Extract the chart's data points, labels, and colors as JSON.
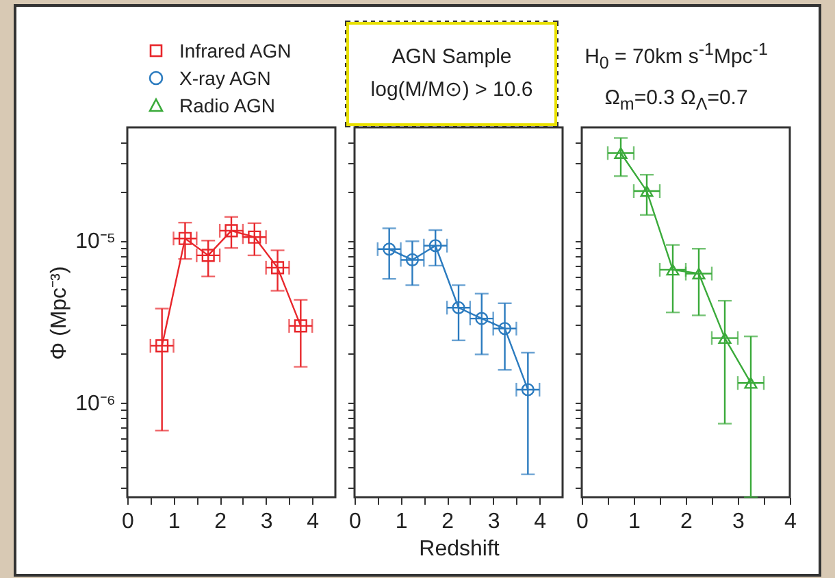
{
  "chart_data": [
    {
      "type": "line",
      "ylabel": "Φ (Mpc⁻³)",
      "legend": "top left",
      "log": "y",
      "tick_labels": "xy",
      "annotations": [
        "AGN Sample",
        "log(M/M⊙) > 10.6",
        "H$_{0}$ = 70km s$^{-1}$Mpc$^{-1}$",
        "Ω$_{m}$=0.3 Ω$_{Λ}$=0.7"
      ],
      "x": [
        0.75,
        1.25,
        1.75,
        2.25,
        2.75,
        3.25,
        3.75
      ],
      "series": [
        {
          "name": "Infrared AGN",
          "color": "#e8262b",
          "marker": "square",
          "values": [
            2.24e-06,
            1.03e-05,
            8.1e-06,
            1.15e-05,
            1.05e-05,
            6.8e-06,
            2.97e-06
          ],
          "errors": [
            [
              6.7e-07,
              3.8e-06
            ],
            [
              7.7e-06,
              1.29e-05
            ],
            [
              6e-06,
              1e-05
            ],
            [
              9e-06,
              1.4e-05
            ],
            [
              8.1e-06,
              1.28e-05
            ],
            [
              4.9e-06,
              8.7e-06
            ],
            [
              1.66e-06,
              4.3e-06
            ]
          ],
          "xerrors": [
            0.25,
            0.25,
            0.25,
            0.25,
            0.25,
            0.25,
            0.25
          ]
        }
      ],
      "xlim": [
        0,
        4.5
      ],
      "xticks": [
        0,
        {
          "value": 0.5,
          "label": null
        },
        1,
        {
          "value": 1.5,
          "label": null
        },
        2,
        {
          "value": 2.5,
          "label": null
        },
        3,
        {
          "value": 3.5,
          "label": null
        },
        4
      ],
      "ylim": [
        2.6e-07,
        5e-05
      ],
      "yticks": [
        {
          "value": 3e-07,
          "label": null
        },
        {
          "value": 4e-07,
          "label": null
        },
        {
          "value": 5e-07,
          "label": null
        },
        {
          "value": 6e-07,
          "label": null
        },
        {
          "value": 7e-07,
          "label": null
        },
        {
          "value": 8e-07,
          "label": null
        },
        {
          "value": 9e-07,
          "label": null
        },
        {
          "value": 1e-06,
          "label": "10⁻⁶"
        },
        {
          "value": 2e-06,
          "label": null
        },
        {
          "value": 3e-06,
          "label": null
        },
        {
          "value": 4e-06,
          "label": null
        },
        {
          "value": 5e-06,
          "label": null
        },
        {
          "value": 6e-06,
          "label": null
        },
        {
          "value": 7e-06,
          "label": null
        },
        {
          "value": 8e-06,
          "label": null
        },
        {
          "value": 9e-06,
          "label": null
        },
        {
          "value": 1e-05,
          "label": "10⁻⁵"
        },
        {
          "value": 2e-05,
          "label": null
        },
        {
          "value": 3e-05,
          "label": null
        },
        {
          "value": 4e-05,
          "label": null
        }
      ]
    },
    {
      "type": "line",
      "xlabel": "Redshift",
      "legend": "top left",
      "log": "y",
      "tick_labels": "x",
      "x": [
        0.75,
        1.25,
        1.75,
        2.25,
        2.75,
        3.25,
        3.75
      ],
      "series": [
        {
          "name": "X-ray AGN",
          "color": "#2b7bbf",
          "marker": "circle",
          "values": [
            8.85e-06,
            7.6e-06,
            9.3e-06,
            3.85e-06,
            3.3e-06,
            2.86e-06,
            1.2e-06
          ],
          "errors": [
            [
              5.8e-06,
              1.19e-05
            ],
            [
              5.3e-06,
              9.9e-06
            ],
            [
              7e-06,
              1.16e-05
            ],
            [
              2.42e-06,
              5.3e-06
            ],
            [
              1.98e-06,
              4.7e-06
            ],
            [
              1.59e-06,
              4.1e-06
            ],
            [
              3.6e-07,
              2.03e-06
            ]
          ],
          "xerrors": [
            0.25,
            0.25,
            0.25,
            0.25,
            0.25,
            0.25,
            0.25
          ]
        }
      ],
      "xlim": [
        0,
        4.5
      ],
      "xticks": [
        0,
        {
          "value": 0.5,
          "label": null
        },
        1,
        {
          "value": 1.5,
          "label": null
        },
        2,
        {
          "value": 2.5,
          "label": null
        },
        3,
        {
          "value": 3.5,
          "label": null
        },
        4
      ],
      "ylim": [
        2.6e-07,
        5e-05
      ],
      "yticks": [
        {
          "value": 3e-07,
          "label": null
        },
        {
          "value": 4e-07,
          "label": null
        },
        {
          "value": 5e-07,
          "label": null
        },
        {
          "value": 6e-07,
          "label": null
        },
        {
          "value": 7e-07,
          "label": null
        },
        {
          "value": 8e-07,
          "label": null
        },
        {
          "value": 9e-07,
          "label": null
        },
        {
          "value": 1e-06,
          "label": null
        },
        {
          "value": 2e-06,
          "label": null
        },
        {
          "value": 3e-06,
          "label": null
        },
        {
          "value": 4e-06,
          "label": null
        },
        {
          "value": 5e-06,
          "label": null
        },
        {
          "value": 6e-06,
          "label": null
        },
        {
          "value": 7e-06,
          "label": null
        },
        {
          "value": 8e-06,
          "label": null
        },
        {
          "value": 9e-06,
          "label": null
        },
        {
          "value": 1e-05,
          "label": null
        },
        {
          "value": 2e-05,
          "label": null
        },
        {
          "value": 3e-05,
          "label": null
        },
        {
          "value": 4e-05,
          "label": null
        }
      ]
    },
    {
      "type": "line",
      "legend": "top left",
      "log": "y",
      "tick_labels": "x",
      "x": [
        0.75,
        1.25,
        1.75,
        2.25,
        2.75,
        3.25
      ],
      "series": [
        {
          "name": "Radio AGN",
          "color": "#3aaa3a",
          "marker": "triangle",
          "values": [
            3.47e-05,
            2.02e-05,
            6.6e-06,
            6.25e-06,
            2.5e-06,
            1.32e-06
          ],
          "errors": [
            [
              2.5e-05,
              4.3e-05
            ],
            [
              1.44e-05,
              2.55e-05
            ],
            [
              3.6e-06,
              9.4e-06
            ],
            [
              3.45e-06,
              8.9e-06
            ],
            [
              7.4e-07,
              4.25e-06
            ],
            [
              2.6e-07,
              2.56e-06
            ]
          ],
          "xerrors": [
            0.25,
            0.25,
            0.25,
            0.25,
            0.25,
            0.25
          ]
        }
      ],
      "xlim": [
        0,
        4
      ],
      "xticks": [
        0,
        {
          "value": 0.5,
          "label": null
        },
        1,
        {
          "value": 1.5,
          "label": null
        },
        2,
        {
          "value": 2.5,
          "label": null
        },
        3,
        {
          "value": 3.5,
          "label": null
        },
        4
      ],
      "ylim": [
        2.6e-07,
        5e-05
      ],
      "yticks": [
        {
          "value": 3e-07,
          "label": null
        },
        {
          "value": 4e-07,
          "label": null
        },
        {
          "value": 5e-07,
          "label": null
        },
        {
          "value": 6e-07,
          "label": null
        },
        {
          "value": 7e-07,
          "label": null
        },
        {
          "value": 8e-07,
          "label": null
        },
        {
          "value": 9e-07,
          "label": null
        },
        {
          "value": 1e-06,
          "label": null
        },
        {
          "value": 2e-06,
          "label": null
        },
        {
          "value": 3e-06,
          "label": null
        },
        {
          "value": 4e-06,
          "label": null
        },
        {
          "value": 5e-06,
          "label": null
        },
        {
          "value": 6e-06,
          "label": null
        },
        {
          "value": 7e-06,
          "label": null
        },
        {
          "value": 8e-06,
          "label": null
        },
        {
          "value": 9e-06,
          "label": null
        },
        {
          "value": 1e-05,
          "label": null
        },
        {
          "value": 2e-05,
          "label": null
        },
        {
          "value": 3e-05,
          "label": null
        },
        {
          "value": 4e-05,
          "label": null
        }
      ]
    }
  ]
}
